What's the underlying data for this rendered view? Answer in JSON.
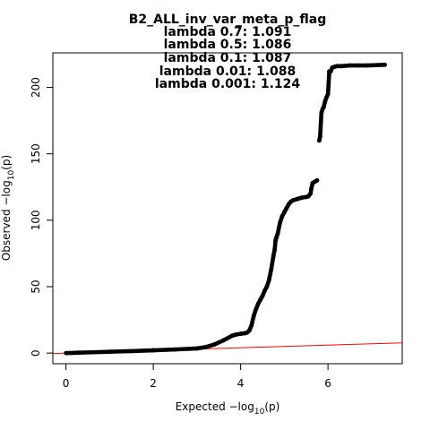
{
  "chart_data": {
    "type": "scatter",
    "title": "B2_ALL_inv_var_meta_p_flag",
    "subtitle_lines": [
      "lambda 0.7: 1.091",
      "lambda 0.5: 1.086",
      "lambda 0.1: 1.087",
      "lambda 0.01: 1.088",
      "lambda 0.001: 1.124"
    ],
    "xlabel": {
      "prefix": "Expected  −log",
      "sub": "10",
      "suffix": "(p)"
    },
    "ylabel": {
      "prefix": "Observed  −log",
      "sub": "10",
      "suffix": "(p)"
    },
    "xlim": [
      -0.3,
      7.7
    ],
    "ylim": [
      -8,
      226
    ],
    "xticks": [
      0,
      2,
      4,
      6
    ],
    "yticks": [
      0,
      50,
      100,
      150,
      200
    ],
    "grid": false,
    "point_color": "#000000",
    "reference_line": {
      "from": [
        0,
        0
      ],
      "to": [
        7.7,
        7.7
      ],
      "color": "#ff0000"
    },
    "series": [
      {
        "x": [
          0,
          0.3,
          0.6,
          1.0,
          1.5,
          2.0,
          2.5,
          3.0,
          3.2,
          3.4,
          3.6,
          3.8,
          3.9,
          4.0,
          4.1,
          4.15,
          4.2,
          4.25,
          4.3,
          4.35,
          4.4,
          4.45,
          4.5,
          4.55,
          4.6,
          4.65,
          4.7,
          4.75,
          4.78,
          4.8,
          4.82,
          4.85,
          4.9,
          4.95,
          5.0,
          5.05,
          5.1,
          5.15,
          5.2,
          5.3,
          5.4,
          5.5,
          5.55,
          5.6,
          5.62,
          5.65,
          5.7,
          5.75,
          5.8,
          5.82,
          5.85,
          5.88,
          5.9,
          5.93,
          5.96,
          6.0,
          6.03,
          6.06,
          6.1,
          6.15,
          6.2,
          6.3,
          6.5,
          6.7,
          6.9,
          7.3
        ],
        "y": [
          0,
          0.3,
          0.6,
          1.0,
          1.5,
          2.1,
          2.7,
          3.5,
          4.5,
          6.5,
          9.5,
          13,
          14,
          14.5,
          15,
          15.5,
          17,
          21,
          28,
          33,
          37,
          40,
          43,
          47,
          50,
          55,
          63,
          73,
          78,
          85,
          87,
          90,
          98,
          103,
          106,
          109,
          112,
          114,
          115,
          116,
          117,
          117.5,
          118,
          120,
          124,
          128,
          129,
          130,
          160,
          163,
          181,
          184,
          185,
          189,
          192,
          195,
          212,
          212,
          215,
          215.5,
          216,
          216,
          216.5,
          216.5,
          216.5,
          217
        ]
      }
    ]
  }
}
